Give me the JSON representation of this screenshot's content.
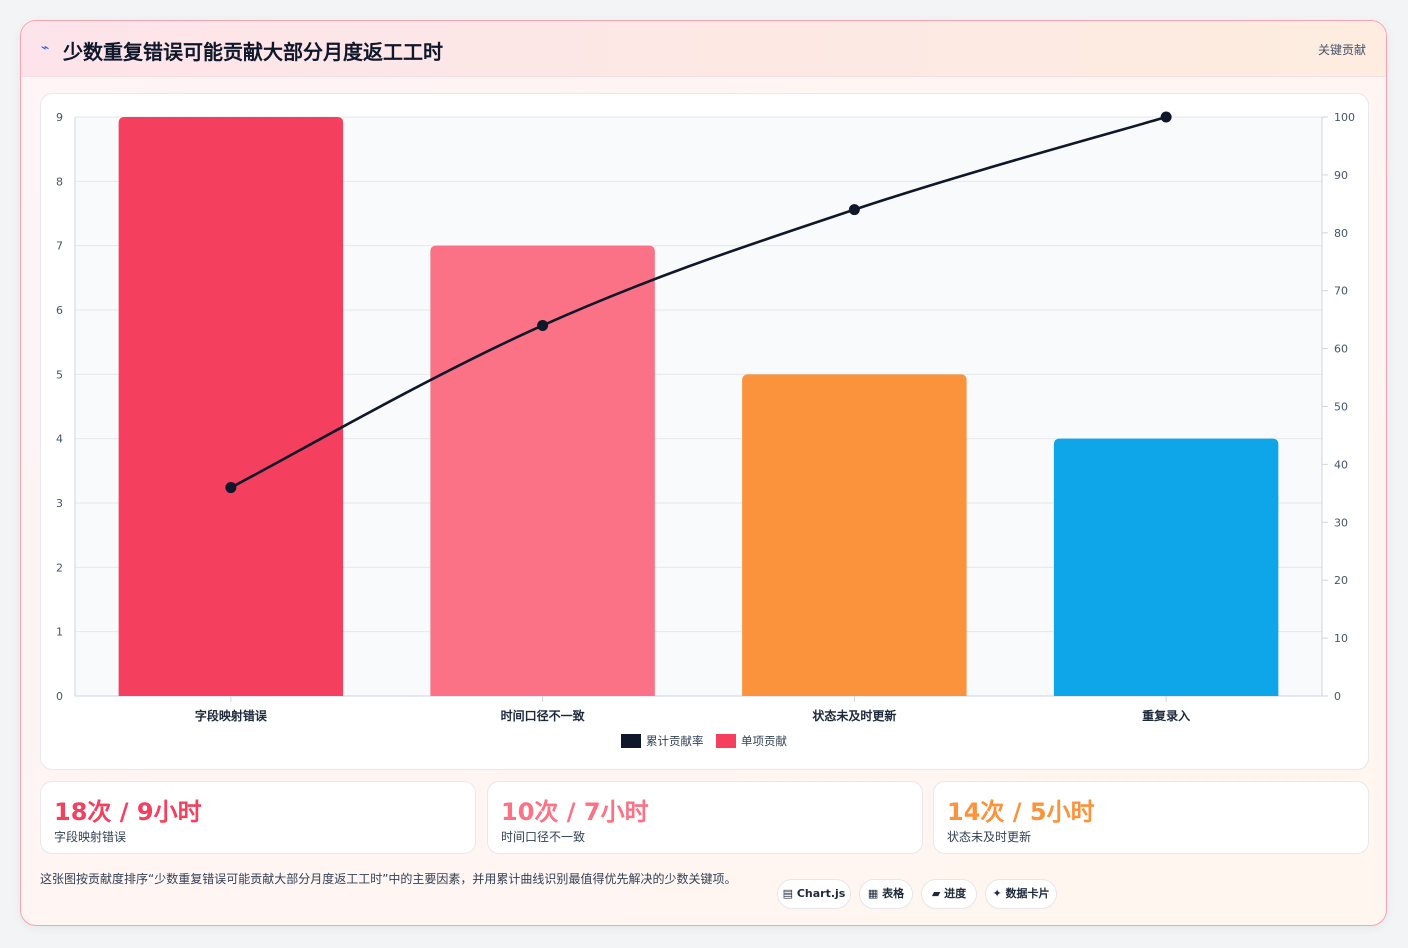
{
  "header": {
    "icon": "bolt-icon",
    "title": "少数重复错误可能贡献大部分月度返工工时",
    "tag": "关键贡献"
  },
  "chart_data": {
    "type": "bar",
    "categories": [
      "字段映射错误",
      "时间口径不一致",
      "状态未及时更新",
      "重复录入"
    ],
    "series": [
      {
        "name": "单项贡献",
        "type": "bar",
        "axis": "left",
        "values": [
          9,
          7,
          5,
          4
        ],
        "colors": [
          "#f43f5e",
          "#fb7185",
          "#fb923c",
          "#0ea5e9"
        ]
      },
      {
        "name": "累计贡献率",
        "type": "line",
        "axis": "right",
        "values": [
          36,
          64,
          84,
          100
        ],
        "color": "#0f172a"
      }
    ],
    "ylim": [
      0,
      9
    ],
    "yticks": [
      0,
      1,
      2,
      3,
      4,
      5,
      6,
      7,
      8,
      9
    ],
    "y2lim": [
      0,
      100
    ],
    "y2ticks": [
      0,
      10,
      20,
      30,
      40,
      50,
      60,
      70,
      80,
      90,
      100
    ],
    "legend": [
      "累计贡献率",
      "单项贡献"
    ],
    "legend_position": "bottom",
    "grid": true
  },
  "stats": [
    {
      "value": "18次 / 9小时",
      "label": "字段映射错误",
      "color": "#f43f5e"
    },
    {
      "value": "10次 / 7小时",
      "label": "时间口径不一致",
      "color": "#fb7185"
    },
    {
      "value": "14次 / 5小时",
      "label": "状态未及时更新",
      "color": "#fb923c"
    }
  ],
  "footer": {
    "note": "这张图按贡献度排序“少数重复错误可能贡献大部分月度返工工时”中的主要因素，并用累计曲线识别最值得优先解决的少数关键项。",
    "pills": [
      {
        "label": "▤ Chart.js"
      },
      {
        "label": "▦ 表格"
      },
      {
        "label": "▰ 进度"
      },
      {
        "label": "✦ 数据卡片"
      }
    ]
  }
}
